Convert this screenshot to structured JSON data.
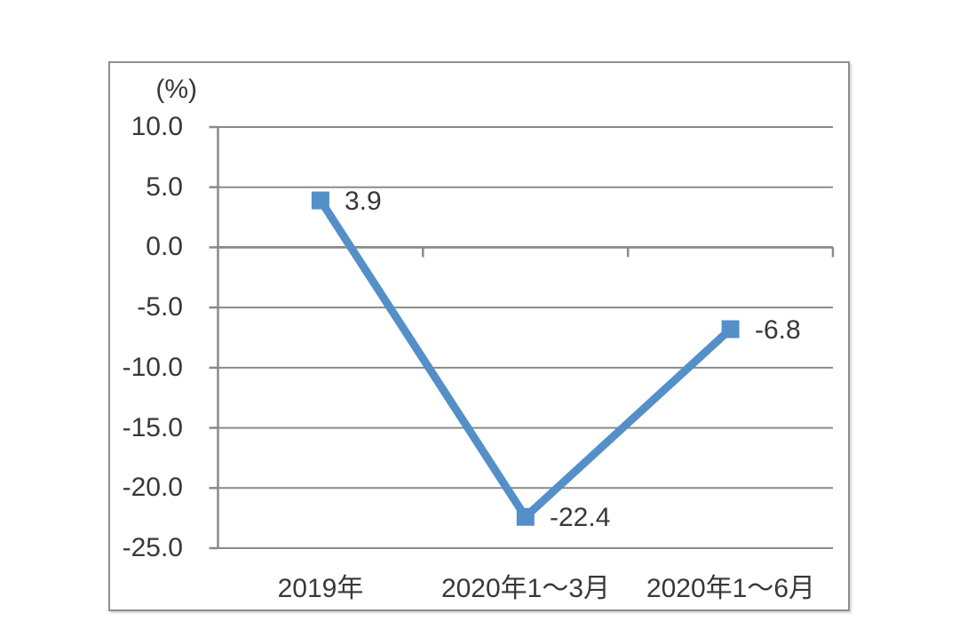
{
  "chart_data": {
    "type": "line",
    "title": "",
    "ylabel": "(%)",
    "categories": [
      "2019年",
      "2020年1～3月",
      "2020年1～6月"
    ],
    "values": [
      3.9,
      -22.4,
      -6.8
    ],
    "data_labels": [
      "3.9",
      "-22.4",
      "-6.8"
    ],
    "series": [
      {
        "name": "",
        "values": [
          3.9,
          -22.4,
          -6.8
        ]
      }
    ],
    "yticks": [
      10,
      5,
      0,
      -5,
      -10,
      -15,
      -20,
      -25
    ],
    "ytick_labels": [
      "10.0",
      "5.0",
      "0.0",
      "-5.0",
      "-10.0",
      "-15.0",
      "-20.0",
      "-25.0"
    ],
    "ylim": [
      -25,
      10
    ],
    "grid": true,
    "legend": "none",
    "marker": "square",
    "colors": {
      "line": "#548FC8",
      "marker": "#548FC8",
      "gridline": "#8A8A8A",
      "axis": "#8A8A8A",
      "text": "#383838",
      "frame_border": "#8F8F8F",
      "background": "#FFFFFF"
    }
  }
}
